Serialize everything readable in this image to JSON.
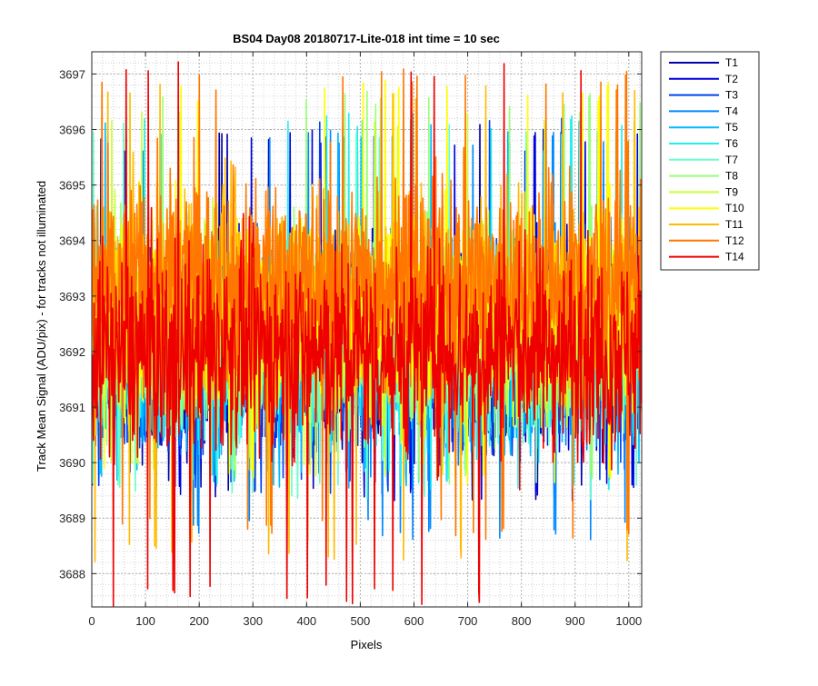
{
  "chart_data": {
    "type": "line",
    "title": "BS04 Day08 20180717-Lite-018 int time = 10 sec",
    "xlabel": "Pixels",
    "ylabel": "Track Mean Signal (ADU/pix) - for tracks not illuminated",
    "xlim": [
      0,
      1024
    ],
    "ylim": [
      3687.4,
      3697.4
    ],
    "x_ticks": [
      0,
      100,
      200,
      300,
      400,
      500,
      600,
      700,
      800,
      900,
      1000
    ],
    "y_ticks": [
      3688,
      3689,
      3690,
      3691,
      3692,
      3693,
      3694,
      3695,
      3696,
      3697
    ],
    "grid": true,
    "minor_grid": true,
    "legend_position": "outside-top-right",
    "n_points": 1024,
    "series": [
      {
        "name": "T1",
        "color": "#0000aa",
        "center": 3692.0,
        "spread": 1.4,
        "range": [
          3689.3,
          3696.2
        ]
      },
      {
        "name": "T2",
        "color": "#0000dd",
        "center": 3692.0,
        "spread": 1.4,
        "range": [
          3689.3,
          3696.0
        ]
      },
      {
        "name": "T3",
        "color": "#0044ee",
        "center": 3692.0,
        "spread": 1.4,
        "range": [
          3689.4,
          3696.4
        ]
      },
      {
        "name": "T4",
        "color": "#0088ff",
        "center": 3692.0,
        "spread": 1.4,
        "range": [
          3688.6,
          3696.0
        ]
      },
      {
        "name": "T5",
        "color": "#00bbff",
        "center": 3692.0,
        "spread": 1.4,
        "range": [
          3689.5,
          3696.2
        ]
      },
      {
        "name": "T6",
        "color": "#22eeee",
        "center": 3692.1,
        "spread": 1.4,
        "range": [
          3689.5,
          3696.3
        ]
      },
      {
        "name": "T7",
        "color": "#66ffcc",
        "center": 3692.2,
        "spread": 1.4,
        "range": [
          3689.3,
          3696.2
        ]
      },
      {
        "name": "T8",
        "color": "#99ff77",
        "center": 3692.3,
        "spread": 1.4,
        "range": [
          3689.6,
          3696.7
        ]
      },
      {
        "name": "T9",
        "color": "#ccff33",
        "center": 3692.5,
        "spread": 1.4,
        "range": [
          3689.7,
          3696.4
        ]
      },
      {
        "name": "T10",
        "color": "#ffff00",
        "center": 3692.7,
        "spread": 1.4,
        "range": [
          3689.6,
          3696.9
        ]
      },
      {
        "name": "T11",
        "color": "#ffbb00",
        "center": 3693.0,
        "spread": 1.5,
        "range": [
          3688.2,
          3696.9
        ]
      },
      {
        "name": "T12",
        "color": "#ff7700",
        "center": 3693.3,
        "spread": 1.5,
        "range": [
          3688.6,
          3697.1
        ]
      },
      {
        "name": "T14",
        "color": "#ee0000",
        "center": 3692.0,
        "spread": 1.5,
        "range": [
          3687.4,
          3697.3
        ]
      }
    ]
  }
}
